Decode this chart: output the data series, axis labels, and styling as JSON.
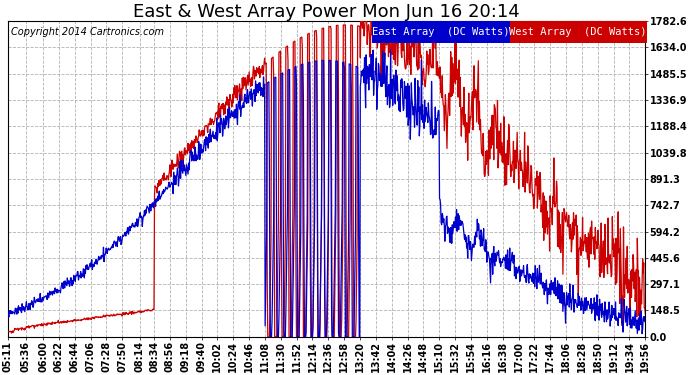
{
  "title": "East & West Array Power Mon Jun 16 20:14",
  "copyright": "Copyright 2014 Cartronics.com",
  "legend_east": "East Array  (DC Watts)",
  "legend_west": "West Array  (DC Watts)",
  "east_color": "#0000cc",
  "west_color": "#cc0000",
  "bg_color": "#ffffff",
  "grid_color": "#aaaaaa",
  "ylim": [
    0.0,
    1782.6
  ],
  "yticks": [
    0.0,
    148.5,
    297.1,
    445.6,
    594.2,
    742.7,
    891.3,
    1039.8,
    1188.4,
    1336.9,
    1485.5,
    1634.0,
    1782.6
  ],
  "ytick_labels": [
    "0.0",
    "148.5",
    "297.1",
    "445.6",
    "594.2",
    "742.7",
    "891.3",
    "1039.8",
    "1188.4",
    "1336.9",
    "1485.5",
    "1634.0",
    "1782.6"
  ],
  "xtick_labels": [
    "05:11",
    "05:36",
    "06:00",
    "06:22",
    "06:44",
    "07:06",
    "07:28",
    "07:50",
    "08:14",
    "08:34",
    "08:56",
    "09:18",
    "09:40",
    "10:02",
    "10:24",
    "10:46",
    "11:08",
    "11:30",
    "11:52",
    "12:14",
    "12:36",
    "12:58",
    "13:20",
    "13:42",
    "14:04",
    "14:26",
    "14:48",
    "15:10",
    "15:32",
    "15:54",
    "16:16",
    "16:38",
    "17:00",
    "17:22",
    "17:44",
    "18:06",
    "18:28",
    "18:50",
    "19:12",
    "19:34",
    "19:56"
  ],
  "title_fontsize": 13,
  "axis_fontsize": 7,
  "copyright_fontsize": 7,
  "legend_fontsize": 7.5
}
